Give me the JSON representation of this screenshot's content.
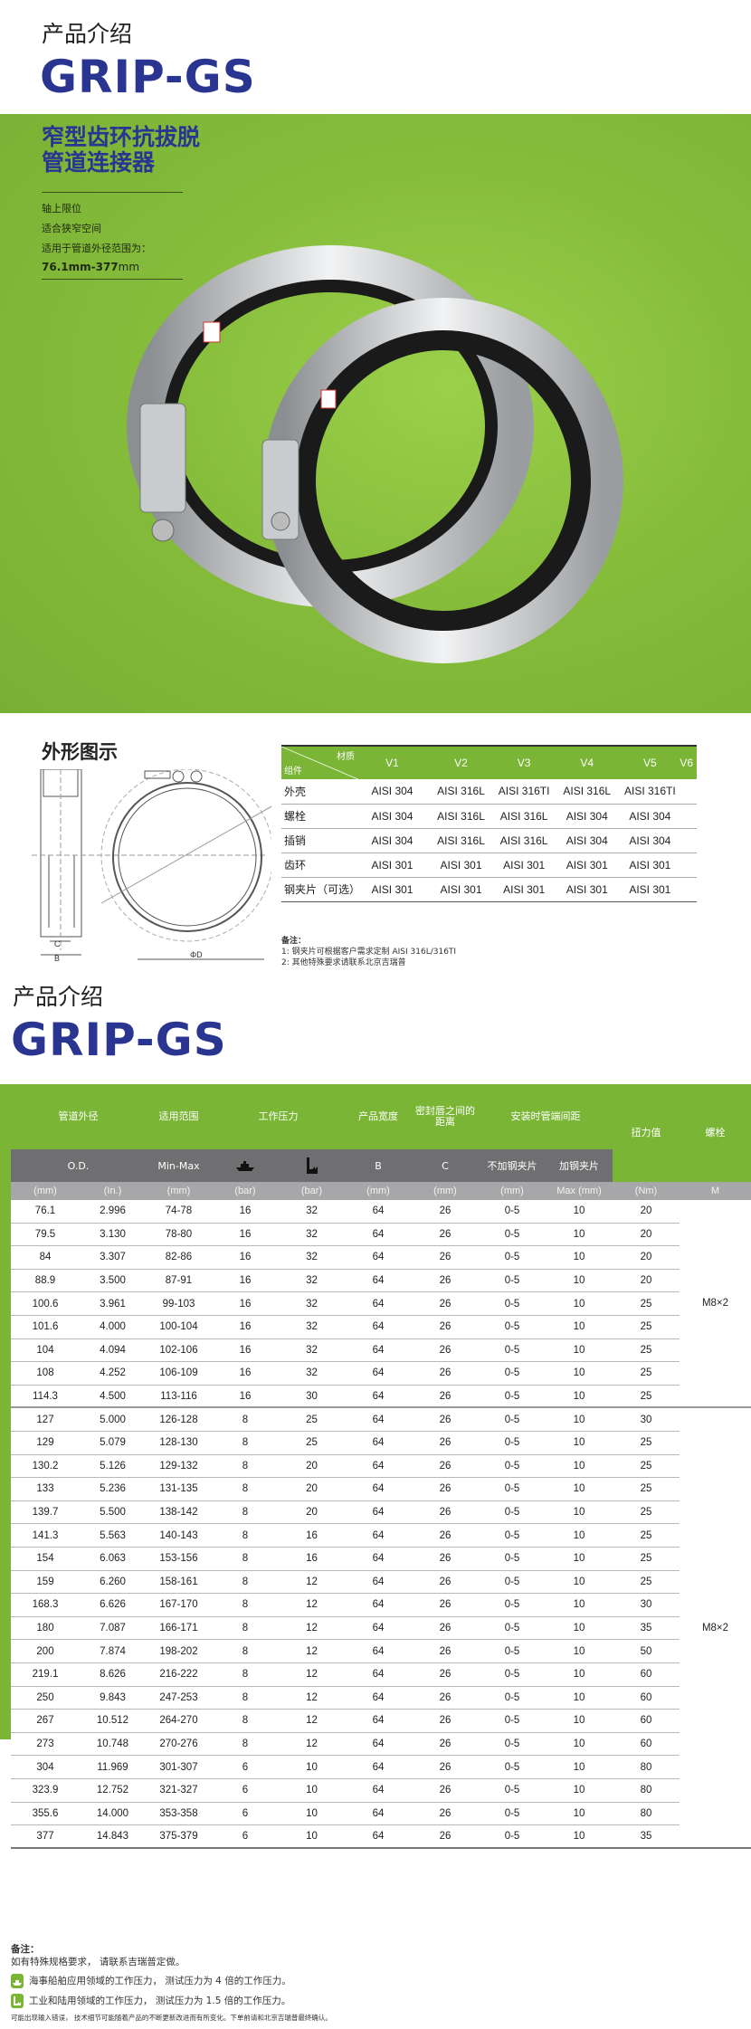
{
  "header": {
    "kicker": "产品介绍",
    "brand": "GRIP-GS"
  },
  "hero": {
    "title_line1": "窄型齿环抗拔脱",
    "title_line2": "管道连接器",
    "features": [
      "轴上限位",
      "适合狭窄空间",
      "适用于管道外径范围为："
    ],
    "range_bold": "76.1mm-377",
    "range_unit": "mm"
  },
  "drawing": {
    "title": "外形图示",
    "label_c": "C",
    "label_b": "B",
    "label_d": "ΦD"
  },
  "materials": {
    "header_material": "材质",
    "header_component": "组件",
    "columns": [
      "V1",
      "V2",
      "V3",
      "V4",
      "V5",
      "V6"
    ],
    "rows": [
      {
        "name": "外壳",
        "values": [
          "AISI 304",
          "AISI 316L",
          "AISI 316TI",
          "AISI 316L",
          "AISI 316TI",
          ""
        ]
      },
      {
        "name": "螺栓",
        "values": [
          "AISI 304",
          "AISI 316L",
          "AISI 316L",
          "AISI 304",
          "AISI 304",
          ""
        ]
      },
      {
        "name": "插销",
        "values": [
          "AISI 304",
          "AISI 316L",
          "AISI 316L",
          "AISI 304",
          "AISI 304",
          ""
        ]
      },
      {
        "name": "齿环",
        "values": [
          "AISI 301",
          "AISI 301",
          "AISI 301",
          "AISI 301",
          "AISI 301",
          ""
        ]
      },
      {
        "name": "钢夹片（可选）",
        "values": [
          "AISI 301",
          "AISI 301",
          "AISI 301",
          "AISI 301",
          "AISI 301",
          ""
        ]
      }
    ],
    "notes_title": "备注：",
    "notes": [
      "1:  钢夹片可根据客户需求定制 AISI  316L/316TI",
      "2:  其他特殊要求请联系北京吉瑞普"
    ]
  },
  "header2": {
    "kicker": "产品介绍",
    "brand": "GRIP-GS"
  },
  "spec": {
    "groups": [
      "管道外径",
      "适用范围",
      "工作压力",
      "产品宽度",
      "密封唇之间的距离",
      "安装时管端间距",
      "扭力值",
      "螺栓"
    ],
    "sub": [
      "O.D.",
      "Min-Max",
      "B",
      "C",
      "不加钢夹片",
      "加钢夹片"
    ],
    "units": [
      "(mm)",
      "(In.)",
      "(mm)",
      "(bar)",
      "(bar)",
      "(mm)",
      "(mm)",
      "(mm)",
      "Max (mm)",
      "(Nm)",
      "M"
    ],
    "icons": [
      "ship-icon",
      "factory-icon"
    ],
    "rows": [
      [
        "76.1",
        "2.996",
        "74-78",
        "16",
        "32",
        "64",
        "26",
        "0-5",
        "10",
        "20"
      ],
      [
        "79.5",
        "3.130",
        "78-80",
        "16",
        "32",
        "64",
        "26",
        "0-5",
        "10",
        "20"
      ],
      [
        "84",
        "3.307",
        "82-86",
        "16",
        "32",
        "64",
        "26",
        "0-5",
        "10",
        "20"
      ],
      [
        "88.9",
        "3.500",
        "87-91",
        "16",
        "32",
        "64",
        "26",
        "0-5",
        "10",
        "20"
      ],
      [
        "100.6",
        "3.961",
        "99-103",
        "16",
        "32",
        "64",
        "26",
        "0-5",
        "10",
        "25"
      ],
      [
        "101.6",
        "4.000",
        "100-104",
        "16",
        "32",
        "64",
        "26",
        "0-5",
        "10",
        "25"
      ],
      [
        "104",
        "4.094",
        "102-106",
        "16",
        "32",
        "64",
        "26",
        "0-5",
        "10",
        "25"
      ],
      [
        "108",
        "4.252",
        "106-109",
        "16",
        "32",
        "64",
        "26",
        "0-5",
        "10",
        "25"
      ],
      [
        "114.3",
        "4.500",
        "113-116",
        "16",
        "30",
        "64",
        "26",
        "0-5",
        "10",
        "25"
      ],
      [
        "127",
        "5.000",
        "126-128",
        "8",
        "25",
        "64",
        "26",
        "0-5",
        "10",
        "30"
      ],
      [
        "129",
        "5.079",
        "128-130",
        "8",
        "25",
        "64",
        "26",
        "0-5",
        "10",
        "25"
      ],
      [
        "130.2",
        "5.126",
        "129-132",
        "8",
        "20",
        "64",
        "26",
        "0-5",
        "10",
        "25"
      ],
      [
        "133",
        "5.236",
        "131-135",
        "8",
        "20",
        "64",
        "26",
        "0-5",
        "10",
        "25"
      ],
      [
        "139.7",
        "5.500",
        "138-142",
        "8",
        "20",
        "64",
        "26",
        "0-5",
        "10",
        "25"
      ],
      [
        "141.3",
        "5.563",
        "140-143",
        "8",
        "16",
        "64",
        "26",
        "0-5",
        "10",
        "25"
      ],
      [
        "154",
        "6.063",
        "153-156",
        "8",
        "16",
        "64",
        "26",
        "0-5",
        "10",
        "25"
      ],
      [
        "159",
        "6.260",
        "158-161",
        "8",
        "12",
        "64",
        "26",
        "0-5",
        "10",
        "25"
      ],
      [
        "168.3",
        "6.626",
        "167-170",
        "8",
        "12",
        "64",
        "26",
        "0-5",
        "10",
        "30"
      ],
      [
        "180",
        "7.087",
        "166-171",
        "8",
        "12",
        "64",
        "26",
        "0-5",
        "10",
        "35"
      ],
      [
        "200",
        "7.874",
        "198-202",
        "8",
        "12",
        "64",
        "26",
        "0-5",
        "10",
        "50"
      ],
      [
        "219.1",
        "8.626",
        "216-222",
        "8",
        "12",
        "64",
        "26",
        "0-5",
        "10",
        "60"
      ],
      [
        "250",
        "9.843",
        "247-253",
        "8",
        "12",
        "64",
        "26",
        "0-5",
        "10",
        "60"
      ],
      [
        "267",
        "10.512",
        "264-270",
        "8",
        "12",
        "64",
        "26",
        "0-5",
        "10",
        "60"
      ],
      [
        "273",
        "10.748",
        "270-276",
        "8",
        "12",
        "64",
        "26",
        "0-5",
        "10",
        "60"
      ],
      [
        "304",
        "11.969",
        "301-307",
        "6",
        "10",
        "64",
        "26",
        "0-5",
        "10",
        "80"
      ],
      [
        "323.9",
        "12.752",
        "321-327",
        "6",
        "10",
        "64",
        "26",
        "0-5",
        "10",
        "80"
      ],
      [
        "355.6",
        "14.000",
        "353-358",
        "6",
        "10",
        "64",
        "26",
        "0-5",
        "10",
        "80"
      ],
      [
        "377",
        "14.843",
        "375-379",
        "6",
        "10",
        "64",
        "26",
        "0-5",
        "10",
        "35"
      ]
    ],
    "bolt_group1": "M8×2",
    "bolt_group2": "M8×2"
  },
  "footer": {
    "title": "备注：",
    "line1": "如有特殊规格要求，  请联系吉瑞普定做。",
    "ship_note": "海事船舶应用领域的工作压力，  测试压力为 4 倍的工作压力。",
    "factory_note": "工业和陆用领域的工作压力，  测试压力为 1.5 倍的工作压力。",
    "disclaimer": "可能出现输入错误，  技术细节可能随着产品的不断更新改进而有所变化。下单前请和北京吉瑞普最终确认。"
  },
  "colors": {
    "brand_blue": "#2a3592",
    "green": "#7ab535",
    "dark_gray": "#6f6f72",
    "light_gray": "#a7a7a9"
  }
}
